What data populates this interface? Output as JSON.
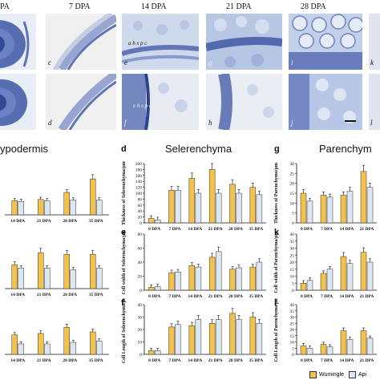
{
  "stage_headers": [
    "PA",
    "7 DPA",
    "14 DPA",
    "21 DPA",
    "28 DPA"
  ],
  "micro_letters": [
    "c",
    "d",
    "e",
    "f",
    "g",
    "h",
    "i",
    "j",
    "k",
    "l"
  ],
  "micro_annotations": {
    "e": "a  h  s p  c",
    "f": "e  h s p  c"
  },
  "sections": {
    "hypodermis": {
      "title": "ypodermis"
    },
    "sclerenchyma": {
      "letter": "d",
      "title": "Selerenchyma"
    },
    "parenchyma": {
      "letter": "g",
      "title": "Parenchym"
    }
  },
  "panel_letters": [
    "d",
    "e",
    "f",
    "g",
    "k",
    "l"
  ],
  "legend": {
    "series1": "Wumingle",
    "series2": "Api"
  },
  "colors": {
    "series1": "#f2c14e",
    "series2": "#dce7f2",
    "bg_micro": "#e3e8f1",
    "stain": "#3d56a6"
  },
  "chart_data": [
    {
      "type": "bar",
      "id": "hyp-thickness",
      "categories": [
        "14 DPA",
        "21 DPA",
        "28 DPA",
        "35 DPA"
      ],
      "series": [
        {
          "name": "Wumingle",
          "values": [
            22,
            24,
            35,
            56
          ]
        },
        {
          "name": "Api",
          "values": [
            21,
            22,
            23,
            23
          ]
        }
      ],
      "ylim": [
        0,
        80
      ]
    },
    {
      "type": "bar",
      "id": "hyp-width",
      "categories": [
        "14 DPA",
        "21 DPA",
        "28 DPA",
        "35 DPA"
      ],
      "series": [
        {
          "name": "Wumingle",
          "values": [
            14,
            21,
            20,
            20
          ]
        },
        {
          "name": "Api",
          "values": [
            12,
            12,
            11,
            12
          ]
        }
      ],
      "ylim": [
        0,
        30
      ]
    },
    {
      "type": "bar",
      "id": "hyp-length",
      "categories": [
        "14 DPA",
        "21 DPA",
        "28 DPA",
        "35 DPA"
      ],
      "series": [
        {
          "name": "Wumingle",
          "values": [
            13,
            14,
            18,
            15
          ]
        },
        {
          "name": "Api",
          "values": [
            7,
            7,
            8,
            9
          ]
        }
      ],
      "ylim": [
        0,
        30
      ]
    },
    {
      "type": "bar",
      "id": "d",
      "categories": [
        "0 DPA",
        "7 DPA",
        "14 DPA",
        "21 DPA",
        "28 DPA",
        "35 DPA"
      ],
      "series": [
        {
          "name": "Wumingle",
          "values": [
            15,
            110,
            150,
            180,
            130,
            120
          ]
        },
        {
          "name": "Api",
          "values": [
            10,
            110,
            100,
            100,
            100,
            95
          ]
        }
      ],
      "ylabel": "Thickness of Selerenchyma/μm",
      "ylim": [
        0,
        200
      ],
      "yticks": [
        0,
        20,
        40,
        60,
        80,
        100,
        120,
        140,
        160,
        180,
        200
      ]
    },
    {
      "type": "bar",
      "id": "e",
      "categories": [
        "0 DPA",
        "7 DPA",
        "14 DPA",
        "21 DPA",
        "28 DPA",
        "35 DPA"
      ],
      "series": [
        {
          "name": "Wumingle",
          "values": [
            4,
            25,
            35,
            47,
            30,
            33
          ]
        },
        {
          "name": "Api",
          "values": [
            5,
            26,
            33,
            55,
            32,
            40
          ]
        }
      ],
      "ylabel": "Cell width of Selerenchyma/μm",
      "ylim": [
        0,
        80
      ],
      "yticks": [
        0,
        20,
        40,
        60,
        80
      ]
    },
    {
      "type": "bar",
      "id": "f",
      "categories": [
        "0 DPA",
        "7 DPA",
        "14 DPA",
        "21 DPA",
        "28 DPA",
        "35 DPA"
      ],
      "series": [
        {
          "name": "Wumingle",
          "values": [
            3,
            22,
            23,
            25,
            33,
            30
          ]
        },
        {
          "name": "Api",
          "values": [
            3,
            24,
            28,
            28,
            28,
            25
          ]
        }
      ],
      "ylabel": "Cell Length of Selerenchyma/μm",
      "ylim": [
        0,
        40
      ],
      "yticks": [
        0,
        10,
        20,
        30,
        40
      ]
    },
    {
      "type": "bar",
      "id": "g",
      "categories": [
        "0 DPA",
        "7 DPA",
        "14 DPA",
        "21 DPA"
      ],
      "series": [
        {
          "name": "Wumingle",
          "values": [
            15,
            14,
            14,
            26
          ]
        },
        {
          "name": "Api",
          "values": [
            11,
            13,
            16,
            18
          ]
        }
      ],
      "ylabel": "Thickness of Parenchyma/μm",
      "ylim": [
        0,
        30
      ],
      "yticks": [
        0,
        5,
        10,
        15,
        20,
        25,
        30
      ]
    },
    {
      "type": "bar",
      "id": "k",
      "categories": [
        "0 DPA",
        "7 DPA",
        "14 DPA",
        "21 DPA"
      ],
      "series": [
        {
          "name": "Wumingle",
          "values": [
            5,
            12,
            24,
            27
          ]
        },
        {
          "name": "Api",
          "values": [
            7,
            15,
            19,
            20
          ]
        }
      ],
      "ylabel": "Cell width of Parenchyma/μm",
      "ylim": [
        0,
        40
      ],
      "yticks": [
        0,
        5,
        10,
        15,
        20,
        25,
        30,
        35,
        40
      ]
    },
    {
      "type": "bar",
      "id": "l",
      "categories": [
        "0 DPA",
        "7 DPA",
        "14 DPA",
        "21 DPA"
      ],
      "series": [
        {
          "name": "Wumingle",
          "values": [
            7,
            8,
            19,
            19
          ]
        },
        {
          "name": "Api",
          "values": [
            5,
            6,
            12,
            13
          ]
        }
      ],
      "ylabel": "Cell Length of Parenchyma/μm",
      "ylim": [
        0,
        40
      ],
      "yticks": [
        0,
        5,
        10,
        15,
        20,
        25,
        30,
        35,
        40
      ]
    }
  ]
}
